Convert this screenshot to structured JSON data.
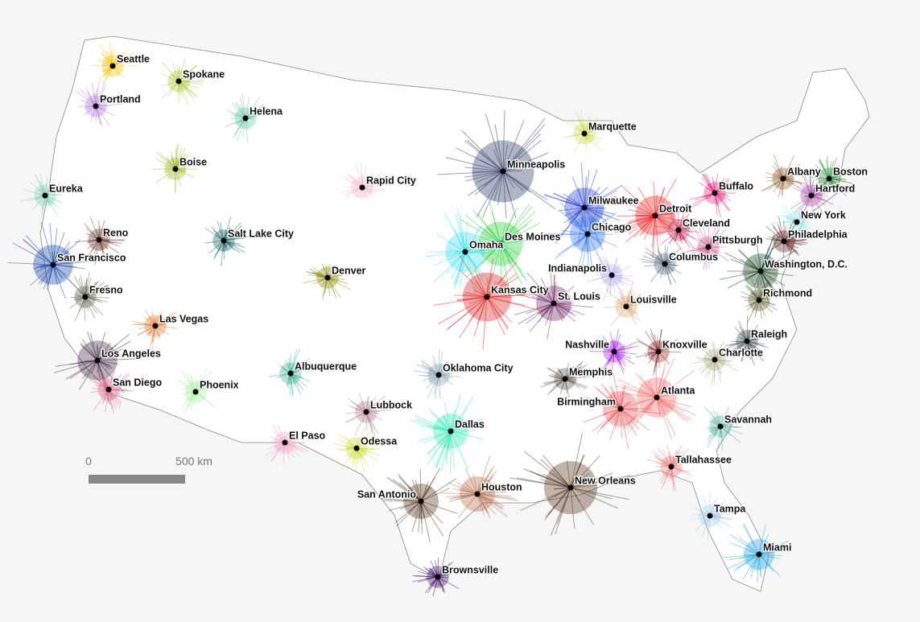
{
  "cities": [
    {
      "name": "Seattle",
      "color": "#f5c400"
    },
    {
      "name": "Spokane",
      "color": "#a8c93a"
    },
    {
      "name": "Portland",
      "color": "#b37fe0"
    },
    {
      "name": "Helena",
      "color": "#66c2a5"
    },
    {
      "name": "Marquette",
      "color": "#c8d84a"
    },
    {
      "name": "Boise",
      "color": "#9ab820"
    },
    {
      "name": "Minneapolis",
      "color": "#1e2a5a"
    },
    {
      "name": "Rapid City",
      "color": "#f4b8d0"
    },
    {
      "name": "Eureka",
      "color": "#7fcfb0"
    },
    {
      "name": "Milwaukee",
      "color": "#1a33c8"
    },
    {
      "name": "Boston",
      "color": "#2e8b3a"
    },
    {
      "name": "Albany",
      "color": "#8b5a2b"
    },
    {
      "name": "Buffalo",
      "color": "#e8187a"
    },
    {
      "name": "Hartford",
      "color": "#a040a0"
    },
    {
      "name": "Detroit",
      "color": "#ee1111"
    },
    {
      "name": "New York",
      "color": "#a0e8e8"
    },
    {
      "name": "Reno",
      "color": "#6b3a2a"
    },
    {
      "name": "Salt Lake City",
      "color": "#0f5f5f"
    },
    {
      "name": "Cleveland",
      "color": "#c0305a"
    },
    {
      "name": "Chicago",
      "color": "#2a70f0"
    },
    {
      "name": "Des Moines",
      "color": "#22cc33"
    },
    {
      "name": "Philadelphia",
      "color": "#5a1a1a"
    },
    {
      "name": "Pittsburgh",
      "color": "#c8508a"
    },
    {
      "name": "Omaha",
      "color": "#33ddee"
    },
    {
      "name": "San Francisco",
      "color": "#0a3aa0"
    },
    {
      "name": "Columbus",
      "color": "#4a6078"
    },
    {
      "name": "Washington, D.C.",
      "color": "#0a3a1a"
    },
    {
      "name": "Denver",
      "color": "#8a8a10"
    },
    {
      "name": "Indianapolis",
      "color": "#b8a8f0"
    },
    {
      "name": "Fresno",
      "color": "#555a40"
    },
    {
      "name": "Kansas City",
      "color": "#dd1111"
    },
    {
      "name": "St. Louis",
      "color": "#6a1a5a"
    },
    {
      "name": "Richmond",
      "color": "#5a5a2a"
    },
    {
      "name": "Louisville",
      "color": "#d8a070"
    },
    {
      "name": "Las Vegas",
      "color": "#e07a30"
    },
    {
      "name": "Raleigh",
      "color": "#3a4a50"
    },
    {
      "name": "Nashville",
      "color": "#9a10e0"
    },
    {
      "name": "Knoxville",
      "color": "#8a2a2a"
    },
    {
      "name": "Los Angeles",
      "color": "#3a1a3a"
    },
    {
      "name": "Charlotte",
      "color": "#b0a880"
    },
    {
      "name": "Albuquerque",
      "color": "#3aaa90"
    },
    {
      "name": "Oklahoma City",
      "color": "#7a9aa8"
    },
    {
      "name": "Memphis",
      "color": "#5a4a40"
    },
    {
      "name": "San Diego",
      "color": "#e06080"
    },
    {
      "name": "Phoenix",
      "color": "#a0f0a0"
    },
    {
      "name": "Atlanta",
      "color": "#f06060"
    },
    {
      "name": "Birmingham",
      "color": "#e84848"
    },
    {
      "name": "Lubbock",
      "color": "#b08090"
    },
    {
      "name": "Savannah",
      "color": "#5ab0a0"
    },
    {
      "name": "Dallas",
      "color": "#20e8b0"
    },
    {
      "name": "El Paso",
      "color": "#f0a0c0"
    },
    {
      "name": "Odessa",
      "color": "#c8d830"
    },
    {
      "name": "Tallahassee",
      "color": "#f07070"
    },
    {
      "name": "Houston",
      "color": "#b06040"
    },
    {
      "name": "New Orleans",
      "color": "#4a2a10"
    },
    {
      "name": "San Antonio",
      "color": "#4a2a10"
    },
    {
      "name": "Tampa",
      "color": "#a0c8f0"
    },
    {
      "name": "Miami",
      "color": "#20a0e0"
    },
    {
      "name": "Brownsville",
      "color": "#3a0a5a"
    }
  ],
  "scale": {
    "labels": [
      "0",
      "500 km"
    ]
  }
}
